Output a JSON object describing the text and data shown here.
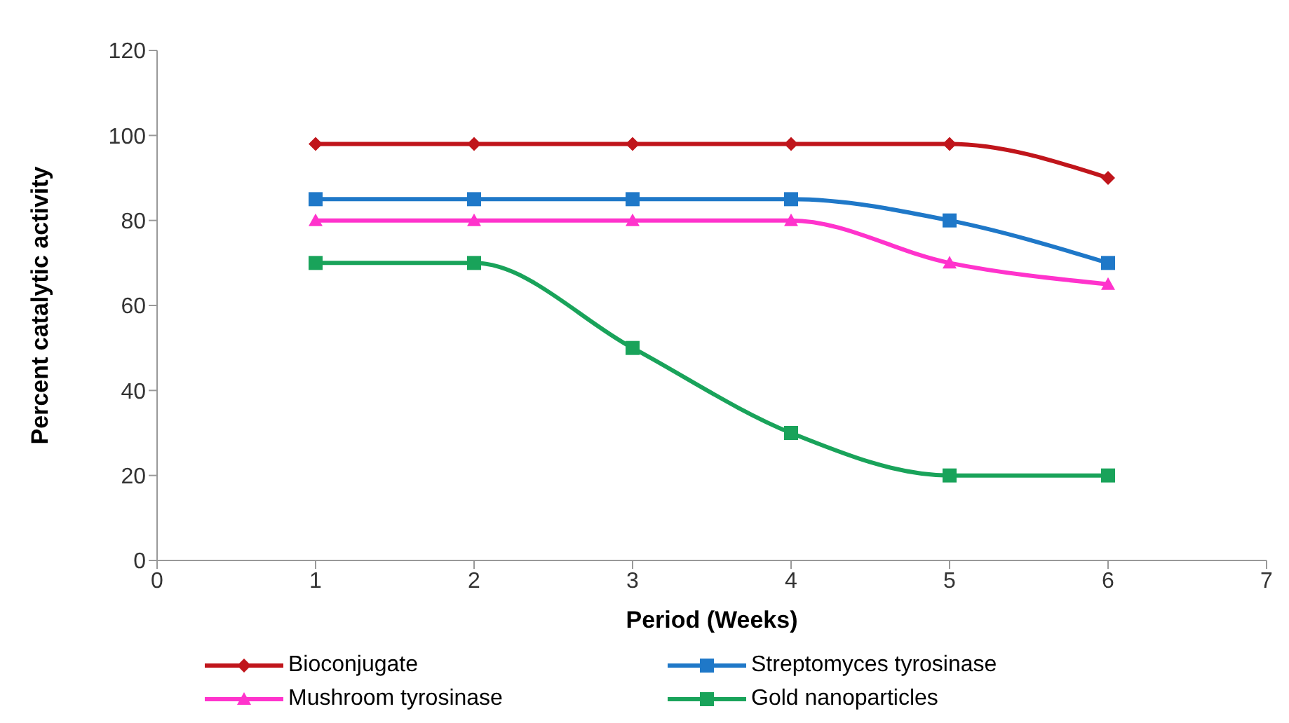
{
  "chart_data": {
    "type": "line",
    "xlabel": "Period (Weeks)",
    "ylabel": "Percent catalytic activity",
    "x": [
      1,
      2,
      3,
      4,
      5,
      6
    ],
    "series": [
      {
        "name": "Bioconjugate",
        "color": "#c0151b",
        "marker": "diamond",
        "values": [
          98,
          98,
          98,
          98,
          98,
          90
        ]
      },
      {
        "name": "Streptomyces tyrosinase",
        "color": "#1f78c8",
        "marker": "square",
        "values": [
          85,
          85,
          85,
          85,
          80,
          70
        ]
      },
      {
        "name": "Mushroom tyrosinase",
        "color": "#ff33cc",
        "marker": "triangle",
        "values": [
          80,
          80,
          80,
          80,
          70,
          65
        ]
      },
      {
        "name": "Gold nanoparticles",
        "color": "#19a35a",
        "marker": "square",
        "values": [
          70,
          70,
          50,
          30,
          20,
          20
        ]
      }
    ],
    "xlim": [
      0,
      7
    ],
    "xticks": [
      0,
      1,
      2,
      3,
      4,
      5,
      6,
      7
    ],
    "ylim": [
      0,
      120
    ],
    "yticks": [
      0,
      20,
      40,
      60,
      80,
      100,
      120
    ],
    "grid": false,
    "legend": "bottom",
    "line_style": "solid"
  }
}
